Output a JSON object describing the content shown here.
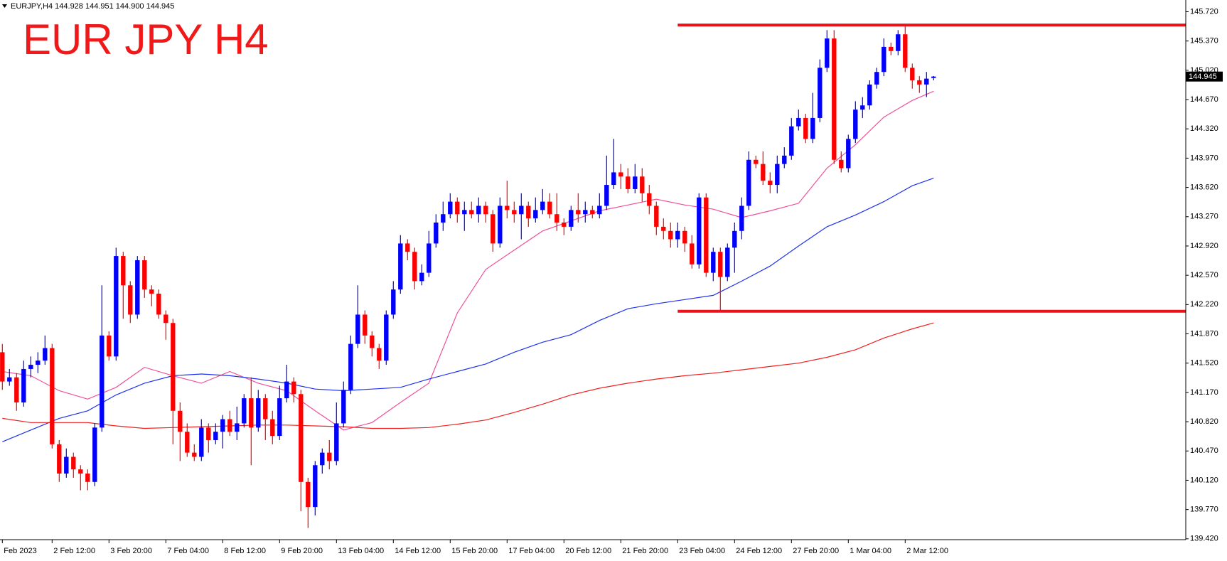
{
  "chart_data": {
    "type": "candlestick",
    "header": "EURJPY,H4  144.928 144.951 144.900 144.945",
    "title": "EUR JPY H4",
    "current_price": 144.945,
    "up_color": "#0000ff",
    "down_color": "#ff0000",
    "ylim": [
      139.41,
      145.86
    ],
    "yticks": [
      {
        "value": 145.72,
        "label": "145.720"
      },
      {
        "value": 145.37,
        "label": "145.370"
      },
      {
        "value": 145.02,
        "label": "145.020"
      },
      {
        "value": 144.67,
        "label": "144.670"
      },
      {
        "value": 144.32,
        "label": "144.320"
      },
      {
        "value": 143.97,
        "label": "143.970"
      },
      {
        "value": 143.62,
        "label": "143.620"
      },
      {
        "value": 143.27,
        "label": "143.270"
      },
      {
        "value": 142.92,
        "label": "142.920"
      },
      {
        "value": 142.57,
        "label": "142.570"
      },
      {
        "value": 142.22,
        "label": "142.220"
      },
      {
        "value": 141.87,
        "label": "141.870"
      },
      {
        "value": 141.52,
        "label": "141.520"
      },
      {
        "value": 141.17,
        "label": "141.170"
      },
      {
        "value": 140.82,
        "label": "140.820"
      },
      {
        "value": 140.47,
        "label": "140.470"
      },
      {
        "value": 140.12,
        "label": "140.120"
      },
      {
        "value": 139.77,
        "label": "139.770"
      },
      {
        "value": 139.42,
        "label": "139.420"
      }
    ],
    "categories": [
      "Feb 2023",
      null,
      null,
      null,
      null,
      null,
      null,
      "2 Feb 12:00",
      null,
      null,
      null,
      null,
      null,
      null,
      null,
      "3 Feb 20:00",
      null,
      null,
      null,
      null,
      null,
      null,
      null,
      "7 Feb 04:00",
      null,
      null,
      null,
      null,
      null,
      null,
      null,
      "8 Feb 12:00",
      null,
      null,
      null,
      null,
      null,
      null,
      null,
      "9 Feb 20:00",
      null,
      null,
      null,
      null,
      null,
      null,
      null,
      "13 Feb 04:00",
      null,
      null,
      null,
      null,
      null,
      null,
      null,
      "14 Feb 12:00",
      null,
      null,
      null,
      null,
      null,
      null,
      null,
      "15 Feb 20:00",
      null,
      null,
      null,
      null,
      null,
      null,
      null,
      "17 Feb 04:00",
      null,
      null,
      null,
      null,
      null,
      null,
      null,
      "20 Feb 12:00",
      null,
      null,
      null,
      null,
      null,
      null,
      null,
      "21 Feb 20:00",
      null,
      null,
      null,
      null,
      null,
      null,
      null,
      "23 Feb 04:00",
      null,
      null,
      null,
      null,
      null,
      null,
      null,
      "24 Feb 12:00",
      null,
      null,
      null,
      null,
      null,
      null,
      null,
      "27 Feb 20:00",
      null,
      null,
      null,
      null,
      null,
      null,
      null,
      "1 Mar 04:00",
      null,
      null,
      null,
      null,
      null,
      null,
      null,
      "2 Mar 12:00",
      null,
      null,
      null,
      null
    ],
    "open": [
      141.65,
      141.3,
      141.35,
      141.05,
      141.45,
      141.5,
      141.55,
      141.7,
      140.55,
      140.2,
      140.4,
      140.25,
      140.2,
      140.1,
      140.75,
      141.85,
      141.6,
      142.8,
      142.45,
      142.1,
      142.75,
      142.4,
      142.35,
      142.1,
      142.0,
      140.95,
      140.7,
      140.45,
      140.4,
      140.75,
      140.6,
      140.7,
      140.85,
      140.7,
      140.8,
      141.1,
      140.75,
      141.1,
      140.85,
      140.65,
      141.1,
      141.3,
      141.15,
      140.1,
      139.8,
      140.3,
      140.45,
      140.35,
      140.8,
      141.2,
      141.75,
      142.1,
      141.85,
      141.7,
      141.55,
      142.1,
      142.4,
      142.95,
      142.85,
      142.5,
      142.6,
      142.95,
      143.2,
      143.3,
      143.45,
      143.3,
      143.35,
      143.3,
      143.4,
      143.3,
      142.95,
      143.4,
      143.35,
      143.3,
      143.4,
      143.25,
      143.35,
      143.45,
      143.3,
      143.2,
      143.15,
      143.35,
      143.3,
      143.35,
      143.3,
      143.4,
      143.65,
      143.8,
      143.75,
      143.6,
      143.75,
      143.55,
      143.4,
      143.15,
      143.1,
      143.0,
      143.1,
      142.95,
      142.7,
      143.5,
      142.6,
      142.85,
      142.55,
      142.9,
      143.1,
      143.4,
      143.95,
      143.9,
      143.7,
      143.65,
      143.9,
      144.0,
      144.35,
      144.45,
      144.2,
      144.45,
      145.05,
      145.4,
      143.95,
      143.85,
      144.2,
      144.55,
      144.6,
      144.85,
      145.0,
      145.3,
      145.25,
      145.45,
      145.05,
      144.9,
      144.85,
      144.928
    ],
    "high": [
      141.75,
      141.45,
      141.4,
      141.55,
      141.6,
      141.65,
      141.85,
      141.75,
      140.6,
      140.5,
      140.45,
      140.3,
      140.25,
      140.8,
      142.45,
      141.9,
      142.9,
      142.85,
      142.5,
      142.8,
      142.8,
      142.45,
      142.4,
      142.15,
      142.05,
      141.05,
      140.8,
      140.55,
      140.85,
      140.8,
      140.8,
      140.9,
      140.95,
      141.0,
      141.15,
      141.35,
      141.2,
      141.15,
      140.95,
      141.25,
      141.5,
      141.35,
      141.2,
      140.15,
      140.35,
      140.5,
      140.6,
      141.05,
      141.3,
      141.85,
      142.45,
      142.15,
      141.9,
      141.75,
      142.15,
      142.5,
      143.05,
      143.0,
      142.9,
      142.7,
      143.1,
      143.3,
      143.45,
      143.55,
      143.5,
      143.45,
      143.45,
      143.5,
      143.45,
      143.35,
      143.5,
      143.7,
      143.45,
      143.55,
      143.45,
      143.5,
      143.6,
      143.55,
      143.55,
      143.25,
      143.4,
      143.55,
      143.45,
      143.4,
      143.55,
      144.0,
      144.2,
      143.9,
      143.85,
      143.9,
      143.85,
      143.65,
      143.45,
      143.25,
      143.2,
      143.2,
      143.15,
      143.05,
      143.55,
      143.55,
      142.9,
      142.9,
      142.95,
      143.2,
      143.5,
      144.05,
      144.0,
      144.05,
      143.8,
      144.0,
      144.1,
      144.45,
      144.55,
      144.5,
      144.75,
      145.15,
      145.5,
      145.5,
      144.05,
      144.25,
      144.65,
      144.7,
      144.9,
      145.05,
      145.4,
      145.35,
      145.5,
      145.57,
      145.1,
      144.95,
      145.0,
      144.951
    ],
    "low": [
      141.2,
      141.25,
      140.95,
      141.0,
      141.35,
      141.4,
      141.5,
      140.5,
      140.1,
      140.15,
      140.15,
      140.0,
      140.0,
      140.05,
      140.7,
      141.55,
      141.55,
      142.05,
      142.0,
      142.05,
      142.3,
      142.2,
      142.05,
      141.8,
      140.55,
      140.35,
      140.4,
      140.35,
      140.35,
      140.45,
      140.55,
      140.5,
      140.65,
      140.6,
      140.75,
      140.3,
      140.7,
      140.6,
      140.55,
      140.6,
      141.05,
      141.05,
      139.75,
      139.55,
      139.7,
      140.2,
      140.25,
      140.3,
      140.75,
      141.15,
      141.7,
      141.75,
      141.6,
      141.45,
      141.5,
      142.05,
      142.35,
      142.75,
      142.4,
      142.45,
      142.55,
      142.9,
      143.1,
      143.25,
      143.2,
      143.1,
      143.25,
      143.2,
      143.2,
      142.85,
      142.9,
      143.25,
      143.2,
      143.0,
      143.15,
      143.2,
      143.3,
      143.25,
      143.1,
      143.05,
      143.1,
      143.2,
      143.2,
      143.25,
      143.25,
      143.35,
      143.6,
      143.6,
      143.55,
      143.55,
      143.45,
      143.3,
      143.05,
      143.0,
      142.9,
      142.9,
      142.85,
      142.65,
      142.65,
      142.55,
      142.5,
      142.15,
      142.5,
      142.6,
      143.0,
      143.35,
      143.85,
      143.65,
      143.55,
      143.55,
      143.85,
      143.95,
      144.3,
      144.15,
      144.15,
      144.4,
      145.0,
      143.9,
      143.8,
      143.8,
      144.15,
      144.45,
      144.55,
      144.8,
      144.95,
      145.2,
      145.2,
      145.0,
      144.8,
      144.75,
      144.7,
      144.9
    ],
    "close": [
      141.3,
      141.35,
      141.05,
      141.45,
      141.5,
      141.55,
      141.7,
      140.55,
      140.2,
      140.4,
      140.25,
      140.2,
      140.1,
      140.75,
      141.85,
      141.6,
      142.8,
      142.45,
      142.1,
      142.75,
      142.4,
      142.35,
      142.1,
      142.0,
      140.95,
      140.7,
      140.45,
      140.4,
      140.75,
      140.6,
      140.7,
      140.85,
      140.7,
      140.8,
      141.1,
      140.75,
      141.1,
      140.85,
      140.65,
      141.1,
      141.3,
      141.15,
      140.1,
      139.8,
      140.3,
      140.45,
      140.35,
      140.8,
      141.2,
      141.75,
      142.1,
      141.85,
      141.7,
      141.55,
      142.1,
      142.4,
      142.95,
      142.85,
      142.5,
      142.6,
      142.95,
      143.2,
      143.3,
      143.45,
      143.3,
      143.35,
      143.3,
      143.4,
      143.3,
      142.95,
      143.4,
      143.35,
      143.3,
      143.4,
      143.25,
      143.35,
      143.45,
      143.3,
      143.2,
      143.15,
      143.35,
      143.3,
      143.35,
      143.3,
      143.4,
      143.65,
      143.8,
      143.75,
      143.6,
      143.75,
      143.55,
      143.4,
      143.15,
      143.1,
      143.0,
      143.1,
      142.95,
      142.7,
      143.5,
      142.6,
      142.85,
      142.55,
      142.9,
      143.1,
      143.4,
      143.95,
      143.9,
      143.7,
      143.65,
      143.9,
      144.0,
      144.35,
      144.45,
      144.2,
      144.45,
      145.05,
      145.4,
      143.95,
      143.85,
      144.2,
      144.55,
      144.6,
      144.85,
      145.0,
      145.3,
      145.25,
      145.45,
      145.05,
      144.9,
      144.85,
      144.92,
      144.945
    ],
    "moving_averages": [
      {
        "color": "#f0509a",
        "x": [
          0,
          4,
          8,
          12,
          16,
          20,
          24,
          28,
          32,
          36,
          40,
          44,
          48,
          52,
          56,
          60,
          64,
          68,
          72,
          76,
          80,
          84,
          88,
          92,
          96,
          100,
          104,
          108,
          112,
          116,
          120,
          124,
          128,
          131
        ],
        "values": [
          141.42,
          141.37,
          141.19,
          141.09,
          141.23,
          141.47,
          141.37,
          141.28,
          141.42,
          141.28,
          141.19,
          140.95,
          140.72,
          140.81,
          141.05,
          141.28,
          142.12,
          142.64,
          142.87,
          143.1,
          143.22,
          143.34,
          143.41,
          143.48,
          143.41,
          143.36,
          143.26,
          143.34,
          143.43,
          143.85,
          144.13,
          144.46,
          144.66,
          144.77
        ]
      },
      {
        "color": "#1e32f0",
        "x": [
          0,
          4,
          8,
          12,
          16,
          20,
          24,
          28,
          32,
          36,
          40,
          44,
          48,
          52,
          56,
          60,
          64,
          68,
          72,
          76,
          80,
          84,
          88,
          92,
          96,
          100,
          104,
          108,
          112,
          116,
          120,
          124,
          128,
          131
        ],
        "values": [
          140.58,
          140.72,
          140.86,
          140.95,
          141.14,
          141.28,
          141.37,
          141.39,
          141.37,
          141.33,
          141.28,
          141.21,
          141.19,
          141.21,
          141.23,
          141.33,
          141.42,
          141.51,
          141.65,
          141.77,
          141.86,
          142.03,
          142.17,
          142.23,
          142.28,
          142.33,
          142.5,
          142.68,
          142.92,
          143.15,
          143.29,
          143.45,
          143.64,
          143.73
        ]
      },
      {
        "color": "#f02020",
        "x": [
          0,
          4,
          8,
          12,
          16,
          20,
          24,
          28,
          32,
          36,
          40,
          44,
          48,
          52,
          56,
          60,
          64,
          68,
          72,
          76,
          80,
          84,
          88,
          92,
          96,
          100,
          104,
          108,
          112,
          116,
          120,
          124,
          128,
          131
        ],
        "values": [
          140.86,
          140.81,
          140.81,
          140.81,
          140.77,
          140.74,
          140.75,
          140.76,
          140.77,
          140.78,
          140.78,
          140.77,
          140.76,
          140.74,
          140.74,
          140.75,
          140.79,
          140.84,
          140.93,
          141.03,
          141.14,
          141.22,
          141.28,
          141.33,
          141.37,
          141.4,
          141.44,
          141.48,
          141.52,
          141.59,
          141.68,
          141.82,
          141.93,
          142.0
        ]
      }
    ],
    "levels": [
      {
        "value": 145.56,
        "color": "#e8141b",
        "from_index": 95
      },
      {
        "value": 142.14,
        "color": "#e8141b",
        "from_index": 95
      }
    ]
  }
}
